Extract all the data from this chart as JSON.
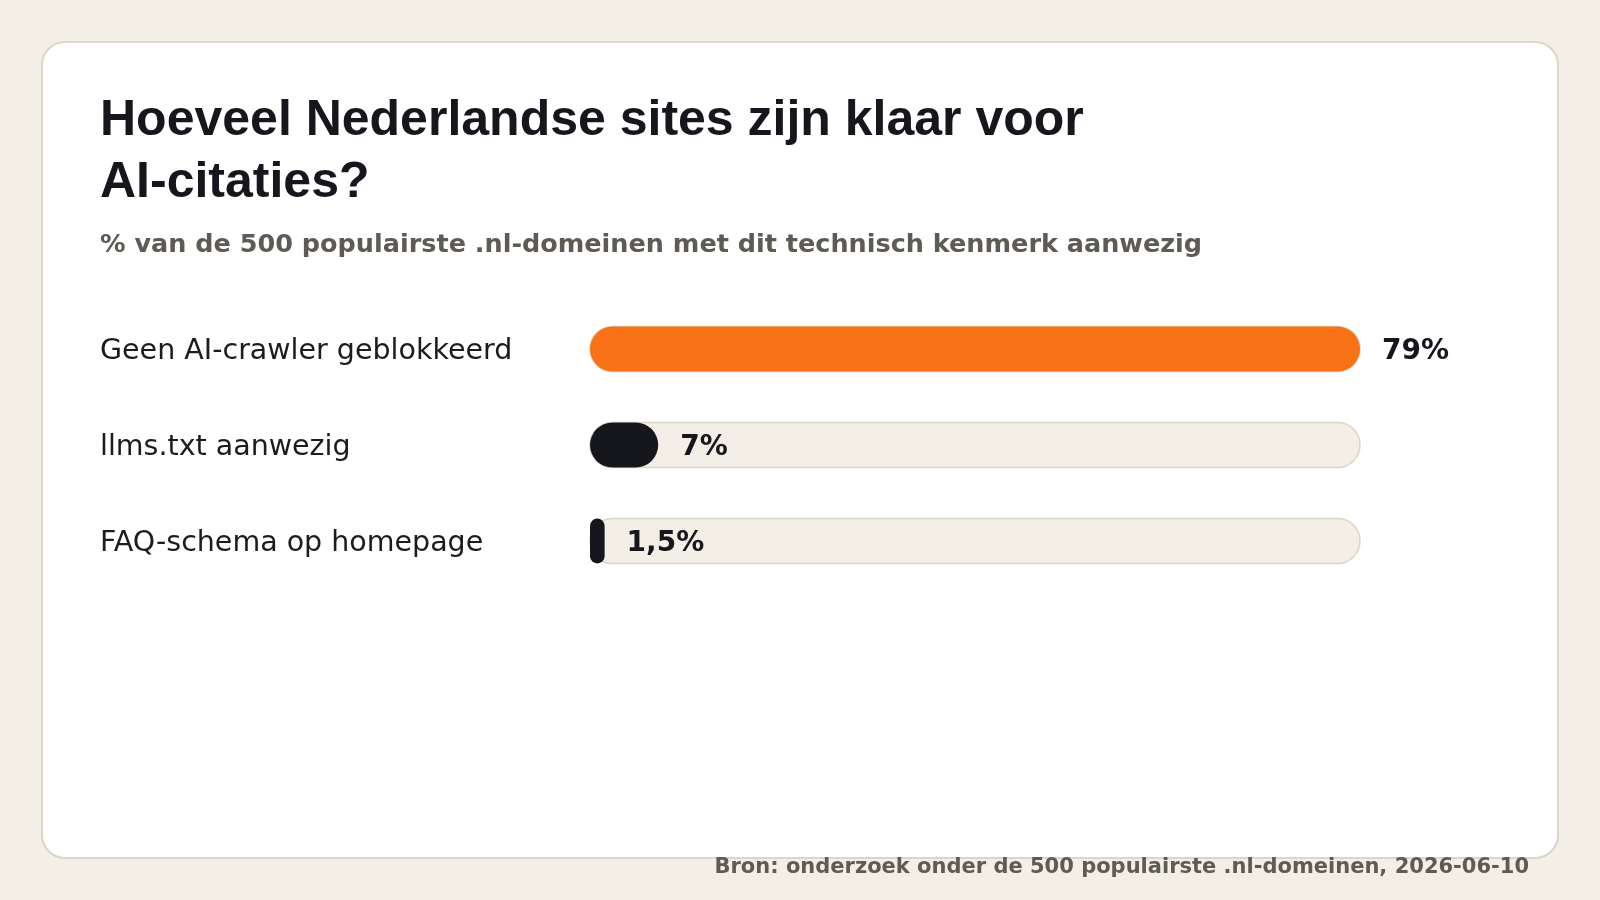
{
  "chart_data": {
    "type": "bar",
    "orientation": "horizontal",
    "title": "Hoeveel Nederlandse sites zijn klaar voor AI-citaties?",
    "subtitle": "% van de 500 populairste .nl-domeinen met dit technisch kenmerk aanwezig",
    "categories": [
      "Geen AI-crawler geblokkeerd",
      "llms.txt aanwezig",
      "FAQ-schema op homepage"
    ],
    "values": [
      79,
      7,
      1.5
    ],
    "colors": [
      "#f97316",
      "#16171d",
      "#16171d"
    ],
    "value_labels": [
      "79%",
      "7%",
      "1,5%"
    ],
    "tick_labels": "y",
    "annotations": [
      "Bron: onderzoek onder de 500 populairste .nl-domeinen, 2026-06-10"
    ]
  }
}
